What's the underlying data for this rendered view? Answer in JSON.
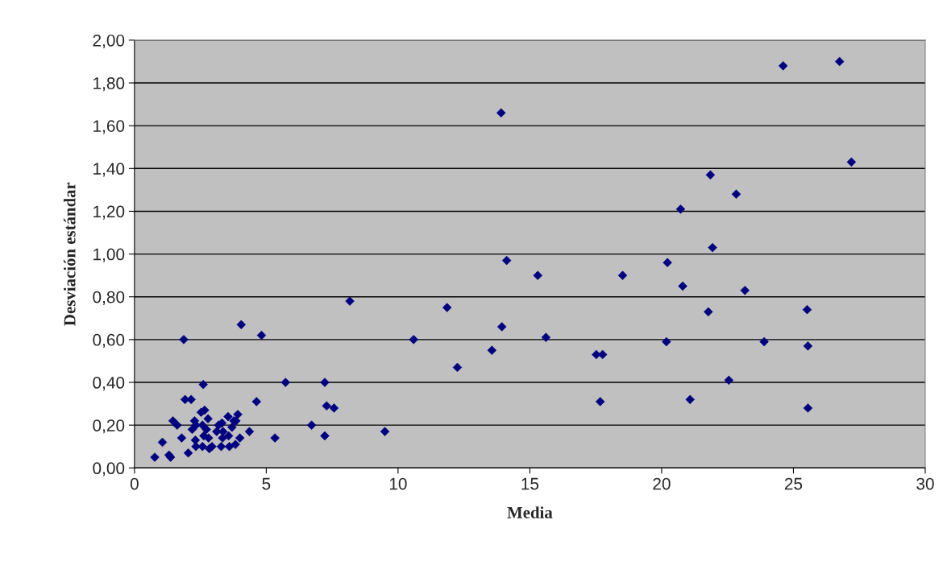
{
  "chart_data": {
    "type": "scatter",
    "xlabel": "Media",
    "ylabel": "Desviación estándar",
    "x": [
      0.77,
      1.06,
      1.31,
      1.37,
      1.46,
      1.62,
      1.79,
      1.87,
      1.92,
      2.15,
      2.04,
      2.19,
      2.28,
      2.33,
      2.31,
      2.33,
      2.53,
      2.66,
      2.61,
      2.58,
      2.58,
      2.63,
      2.73,
      2.79,
      2.81,
      2.84,
      2.94,
      3.12,
      3.19,
      3.32,
      3.36,
      3.34,
      3.29,
      3.55,
      3.57,
      3.6,
      3.7,
      3.77,
      3.83,
      3.85,
      3.92,
      4.0,
      4.05,
      4.36,
      4.63,
      4.82,
      5.33,
      5.73,
      8.17,
      6.72,
      7.22,
      7.22,
      7.29,
      7.57,
      9.5,
      10.59,
      11.86,
      12.25,
      13.56,
      13.94,
      15.61,
      13.91,
      21.85,
      20.72,
      21.93,
      14.12,
      15.3,
      18.52,
      20.22,
      20.8,
      21.77,
      20.18,
      17.52,
      17.76,
      17.67,
      21.08,
      24.61,
      26.75,
      27.2,
      22.83,
      23.16,
      25.52,
      23.89,
      25.55,
      22.55,
      25.55
    ],
    "values": [
      0.05,
      0.12,
      0.06,
      0.05,
      0.22,
      0.2,
      0.14,
      0.6,
      0.32,
      0.32,
      0.07,
      0.18,
      0.22,
      0.2,
      0.13,
      0.1,
      0.26,
      0.27,
      0.39,
      0.2,
      0.1,
      0.15,
      0.18,
      0.23,
      0.14,
      0.09,
      0.1,
      0.17,
      0.2,
      0.21,
      0.17,
      0.14,
      0.1,
      0.24,
      0.15,
      0.1,
      0.19,
      0.22,
      0.11,
      0.22,
      0.25,
      0.14,
      0.67,
      0.17,
      0.31,
      0.62,
      0.14,
      0.4,
      0.78,
      0.2,
      0.4,
      0.15,
      0.29,
      0.28,
      0.17,
      0.6,
      0.75,
      0.47,
      0.55,
      0.66,
      0.61,
      1.66,
      1.37,
      1.21,
      1.03,
      0.97,
      0.9,
      0.9,
      0.96,
      0.85,
      0.73,
      0.59,
      0.53,
      0.53,
      0.31,
      0.32,
      1.88,
      1.9,
      1.43,
      1.28,
      0.83,
      0.74,
      0.59,
      0.57,
      0.41,
      0.28
    ],
    "color": "#000080",
    "marker": "diamond",
    "xlim": [
      0,
      30
    ],
    "xticks": [
      0,
      5,
      10,
      15,
      20,
      25,
      30
    ],
    "ylim": [
      0,
      2
    ],
    "yticks": [
      {
        "value": 0,
        "label": "0,00"
      },
      {
        "value": 0.2,
        "label": "0,20"
      },
      {
        "value": 0.4,
        "label": "0,40"
      },
      {
        "value": 0.6,
        "label": "0,60"
      },
      {
        "value": 0.8,
        "label": "0,80"
      },
      {
        "value": 1.0,
        "label": "1,00"
      },
      {
        "value": 1.2,
        "label": "1,20"
      },
      {
        "value": 1.4,
        "label": "1,40"
      },
      {
        "value": 1.6,
        "label": "1,60"
      },
      {
        "value": 1.8,
        "label": "1,80"
      },
      {
        "value": 2.0,
        "label": "2,00"
      }
    ],
    "grid": "y"
  }
}
